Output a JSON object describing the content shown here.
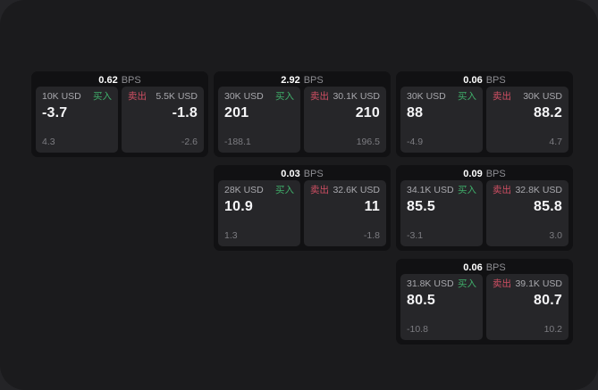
{
  "labels": {
    "buy": "买入",
    "sell": "卖出"
  },
  "units": {
    "bps": "BPS"
  },
  "colors": {
    "buy": "#3fae6a",
    "sell": "#cf4f63",
    "panel": "#1b1b1d",
    "card": "#111113",
    "tile": "#262629"
  },
  "cards": [
    {
      "bps": "0.62",
      "buy": {
        "amount": "10K USD",
        "value": "-3.7",
        "delta": "4.3"
      },
      "sell": {
        "amount": "5.5K USD",
        "value": "-1.8",
        "delta": "-2.6"
      }
    },
    {
      "bps": "2.92",
      "buy": {
        "amount": "30K USD",
        "value": "201",
        "delta": "-188.1"
      },
      "sell": {
        "amount": "30.1K USD",
        "value": "210",
        "delta": "196.5"
      }
    },
    {
      "bps": "0.06",
      "buy": {
        "amount": "30K USD",
        "value": "88",
        "delta": "-4.9"
      },
      "sell": {
        "amount": "30K USD",
        "value": "88.2",
        "delta": "4.7"
      }
    },
    {
      "bps": "0.03",
      "buy": {
        "amount": "28K USD",
        "value": "10.9",
        "delta": "1.3"
      },
      "sell": {
        "amount": "32.6K USD",
        "value": "11",
        "delta": "-1.8"
      }
    },
    {
      "bps": "0.09",
      "buy": {
        "amount": "34.1K USD",
        "value": "85.5",
        "delta": "-3.1"
      },
      "sell": {
        "amount": "32.8K USD",
        "value": "85.8",
        "delta": "3.0"
      }
    },
    {
      "bps": "0.06",
      "buy": {
        "amount": "31.8K USD",
        "value": "80.5",
        "delta": "-10.8"
      },
      "sell": {
        "amount": "39.1K USD",
        "value": "80.7",
        "delta": "10.2"
      }
    }
  ]
}
